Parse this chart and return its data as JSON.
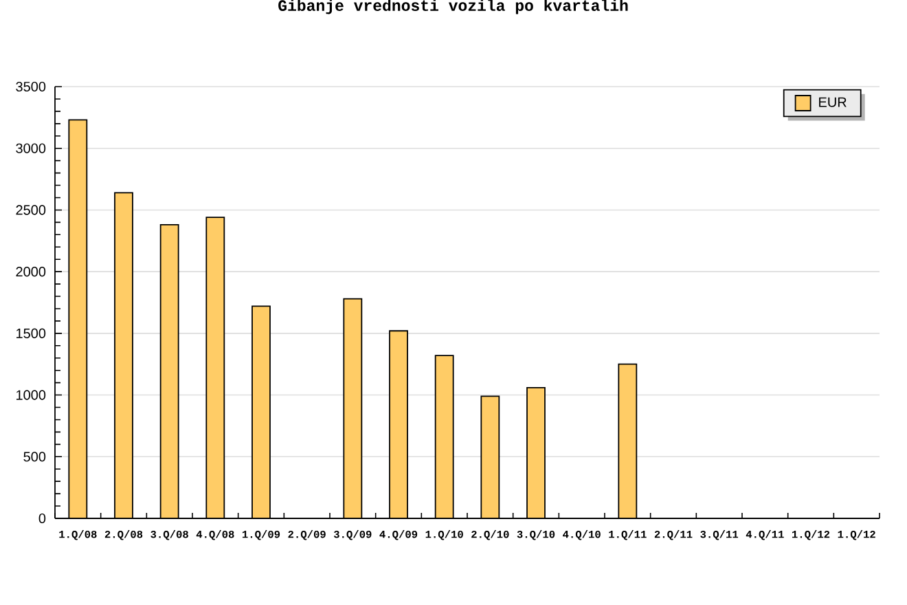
{
  "chart_data": {
    "type": "bar",
    "title": "Gibanje vrednosti vozila po kvartalih",
    "categories": [
      "1.Q/08",
      "2.Q/08",
      "3.Q/08",
      "4.Q/08",
      "1.Q/09",
      "2.Q/09",
      "3.Q/09",
      "4.Q/09",
      "1.Q/10",
      "2.Q/10",
      "3.Q/10",
      "4.Q/10",
      "1.Q/11",
      "2.Q/11",
      "3.Q/11",
      "4.Q/11",
      "1.Q/12",
      "1.Q/12"
    ],
    "series": [
      {
        "name": "EUR",
        "color": "#ffcc66",
        "values": [
          3230,
          2640,
          2380,
          2440,
          1720,
          null,
          1780,
          1520,
          1320,
          990,
          1060,
          null,
          1250,
          null,
          null,
          null,
          null,
          null
        ]
      }
    ],
    "ylim": [
      0,
      3500
    ],
    "yticks": [
      0,
      500,
      1000,
      1500,
      2000,
      2500,
      3000,
      3500
    ],
    "grid": "y",
    "legend": "top right"
  }
}
